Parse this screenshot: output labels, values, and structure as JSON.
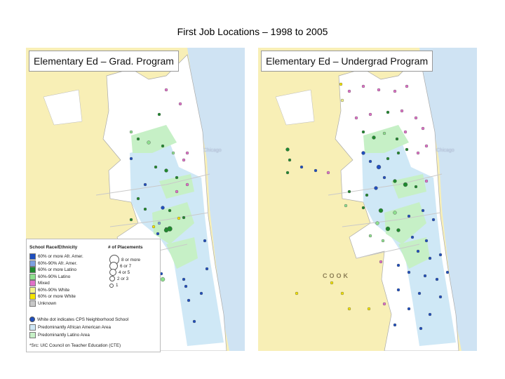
{
  "title": "First Job Locations – 1998 to 2005",
  "panels": {
    "left": {
      "label": "Elementary Ed – Grad. Program",
      "city_label": "Chicago"
    },
    "right": {
      "label": "Elementary Ed – Undergrad Program",
      "city_label": "Chicago",
      "county_label": "COOK"
    }
  },
  "legend": {
    "race_heading": "School Race/Ethnicity",
    "placements_heading": "# of Placements",
    "race_items": [
      {
        "label": "60% or more Afr. Amer.",
        "color": "#1f4fbf"
      },
      {
        "label": "60%-90% Afr. Amer.",
        "color": "#7d9fe0"
      },
      {
        "label": "60% or more Latino",
        "color": "#1f8a2e"
      },
      {
        "label": "60%-90% Latino",
        "color": "#8ee08e"
      },
      {
        "label": "Mixed",
        "color": "#e070c8"
      },
      {
        "label": "60%-90% White",
        "color": "#f2f28a"
      },
      {
        "label": "60% or more White",
        "color": "#f4e400"
      },
      {
        "label": "Unknown",
        "color": "#c8c8c8"
      }
    ],
    "placement_items": [
      {
        "label": "8 or more",
        "size": 5
      },
      {
        "label": "6 or 7",
        "size": 4
      },
      {
        "label": "4 or 5",
        "size": 3
      },
      {
        "label": "2 or 3",
        "size": 2
      },
      {
        "label": "1",
        "size": 1
      }
    ],
    "area_items": [
      {
        "label": "White dot indicates CPS Neighborhood School",
        "kind": "dot"
      },
      {
        "label": "Predominantly African American Area",
        "kind": "area",
        "color": "#cfe8f6"
      },
      {
        "label": "Predominantly Latino Area",
        "kind": "area",
        "color": "#c6f0c6"
      }
    ],
    "source": "*Src: UIC Council on Teacher Education (CTE)"
  },
  "colors": {
    "suburb": "#f8efb6",
    "city": "#ffffff",
    "african_american_area": "#cfe8f6",
    "latino_area": "#c6f0c6",
    "lake": "#c9dff0"
  }
}
